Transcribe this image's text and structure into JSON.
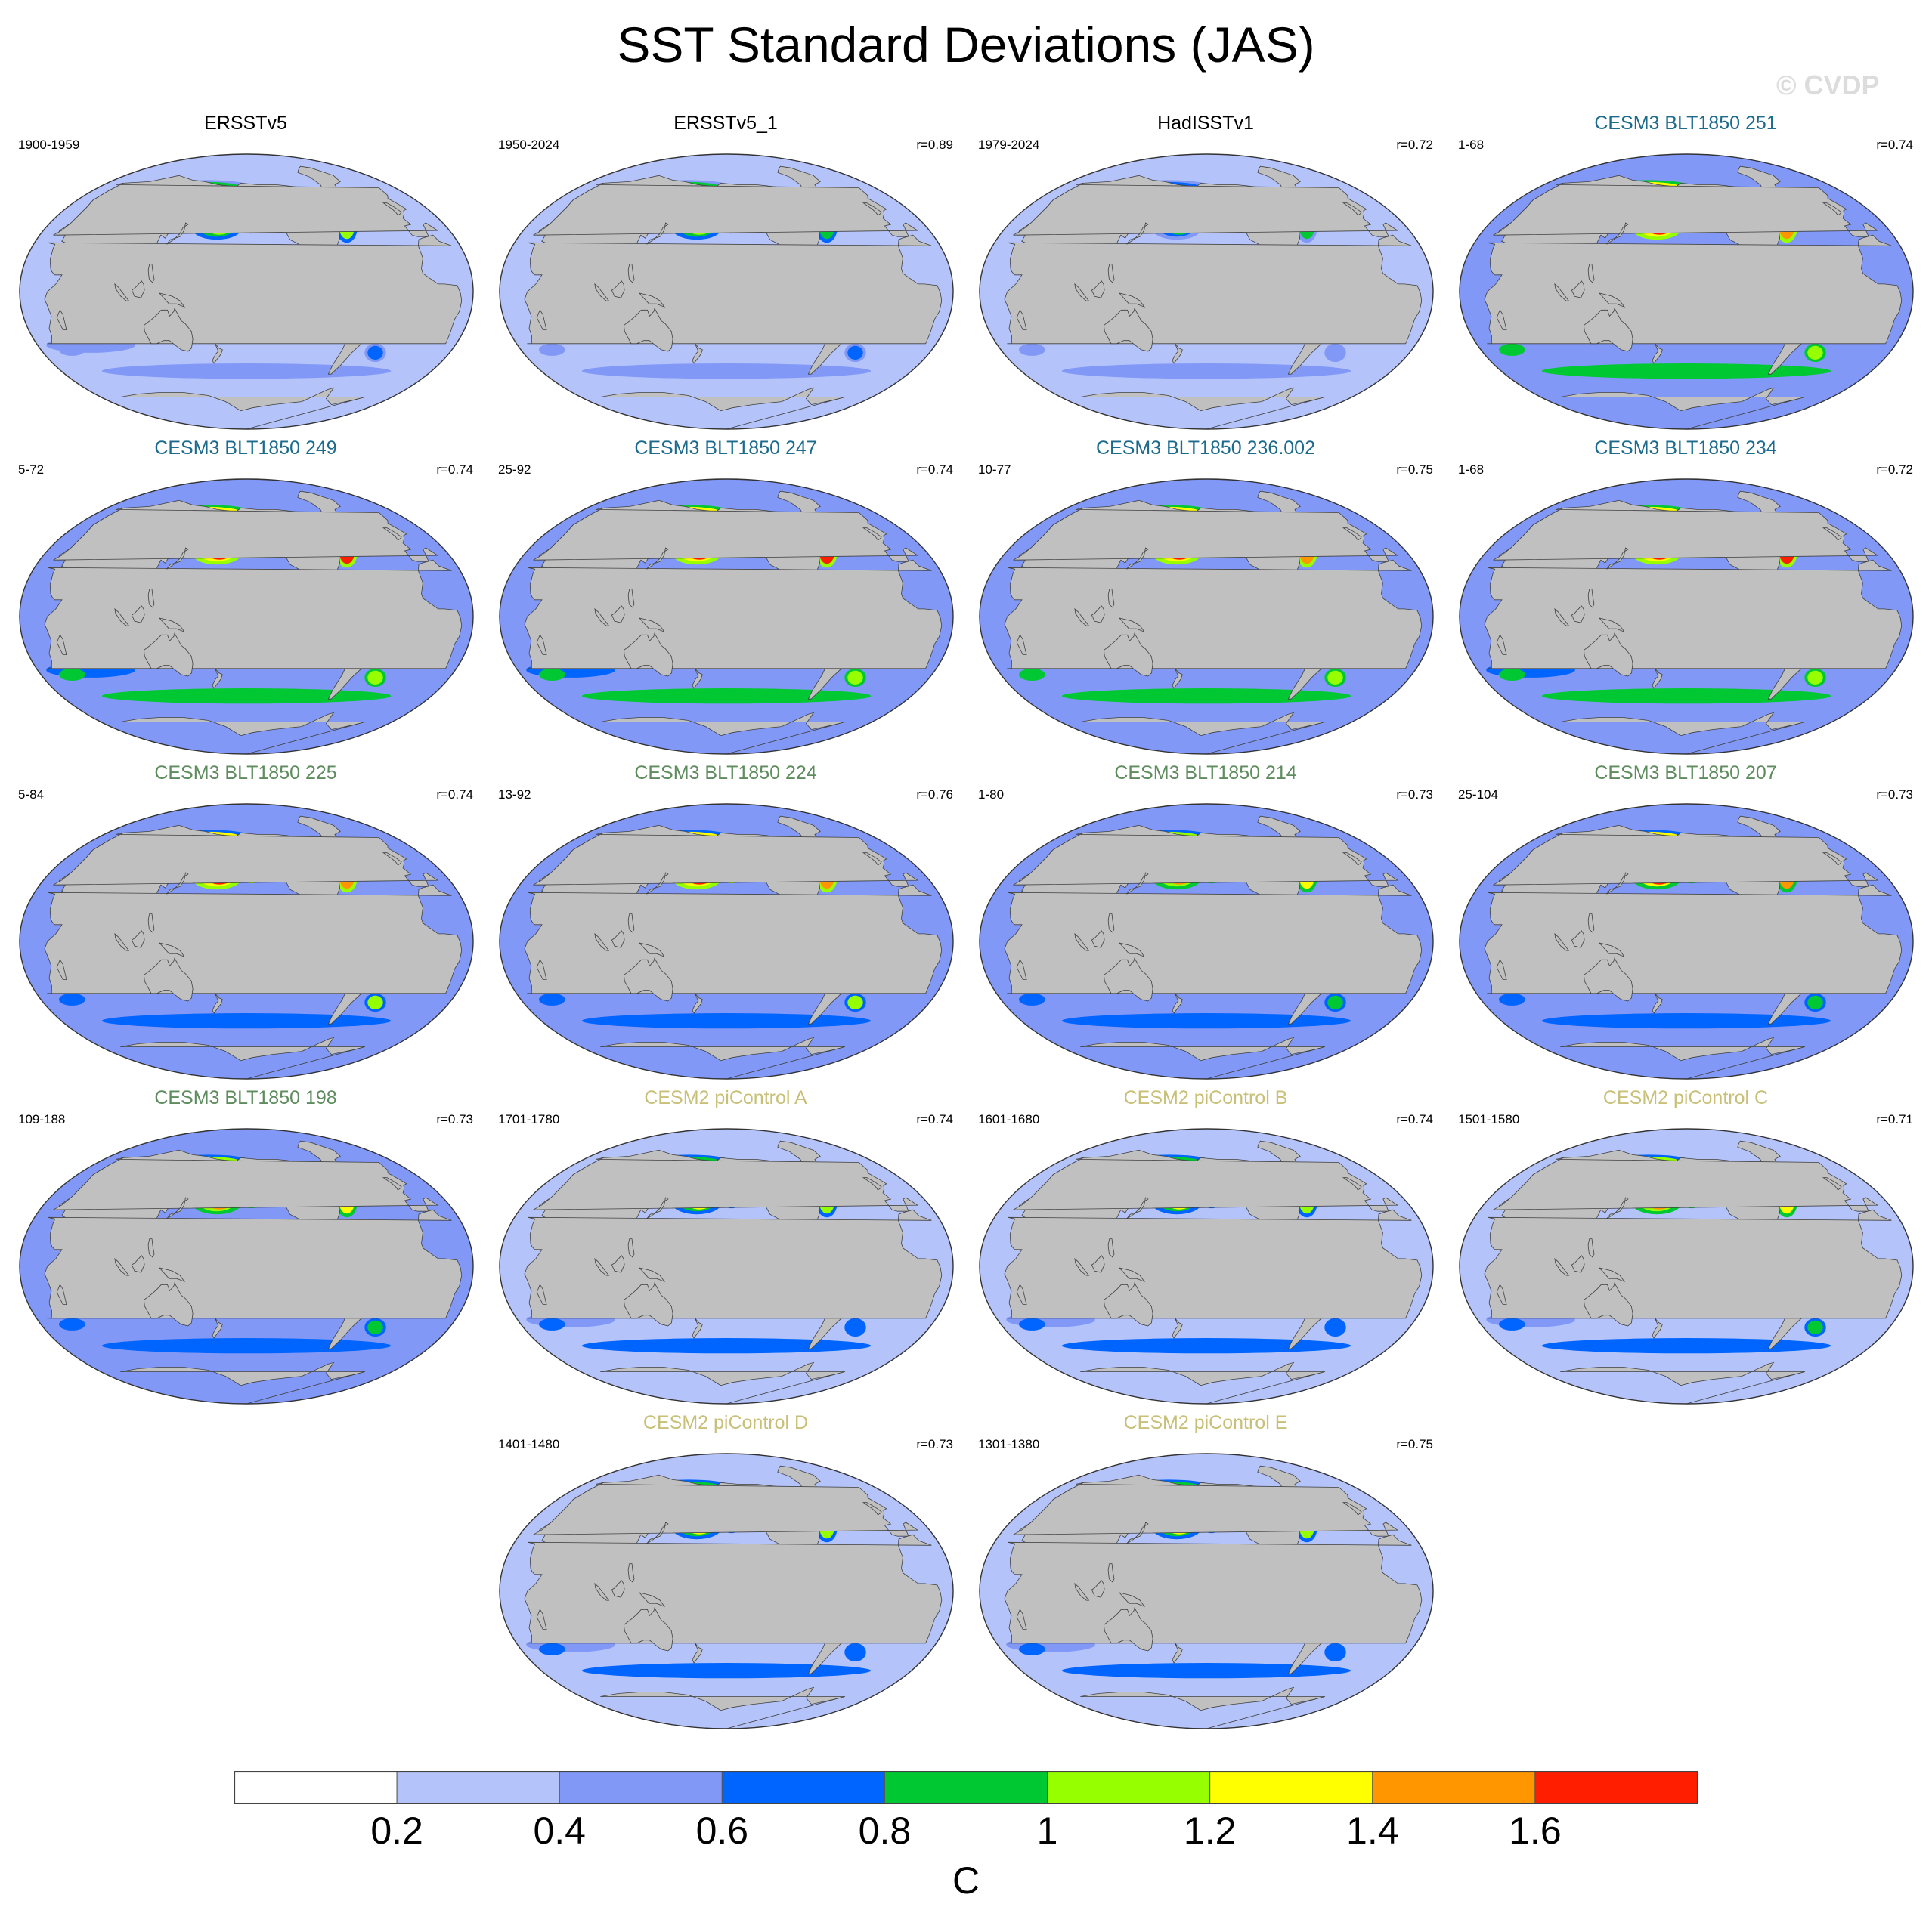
{
  "title": "SST Standard Deviations (JAS)",
  "watermark": "© CVDP",
  "units": "C",
  "colorbar": {
    "levels": [
      0.2,
      0.4,
      0.6,
      0.8,
      1,
      1.2,
      1.4,
      1.6
    ],
    "tick_labels": [
      "0.2",
      "0.4",
      "0.6",
      "0.8",
      "1",
      "1.2",
      "1.4",
      "1.6"
    ],
    "colors": [
      "#ffffff",
      "#b4c3f9",
      "#8198f7",
      "#0064ff",
      "#00c832",
      "#96ff00",
      "#ffff00",
      "#ff9600",
      "#ff1e00"
    ]
  },
  "colors": {
    "land": "#c0c0c0",
    "observation_title": "#000000",
    "cesm3_blue": "#1c6b8c",
    "cesm3_green": "#5e8c5e",
    "cesm2": "#c8c078"
  },
  "panels": [
    {
      "name": "ERSSTv5",
      "period": "1900-1959",
      "r": "",
      "group": "obs",
      "strength": 0.75
    },
    {
      "name": "ERSSTv5_1",
      "period": "1950-2024",
      "r": "r=0.89",
      "group": "obs",
      "strength": 0.7
    },
    {
      "name": "HadISSTv1",
      "period": "1979-2024",
      "r": "r=0.72",
      "group": "obs",
      "strength": 0.6
    },
    {
      "name": "CESM3 BLT1850 251",
      "period": "1-68",
      "r": "r=0.74",
      "group": "cesm3_blue",
      "strength": 1.2
    },
    {
      "name": "CESM3 BLT1850 249",
      "period": "5-72",
      "r": "r=0.74",
      "group": "cesm3_blue",
      "strength": 1.25
    },
    {
      "name": "CESM3 BLT1850 247",
      "period": "25-92",
      "r": "r=0.74",
      "group": "cesm3_blue",
      "strength": 1.25
    },
    {
      "name": "CESM3 BLT1850 236.002",
      "period": "10-77",
      "r": "r=0.75",
      "group": "cesm3_blue",
      "strength": 1.2
    },
    {
      "name": "CESM3 BLT1850 234",
      "period": "1-68",
      "r": "r=0.72",
      "group": "cesm3_blue",
      "strength": 1.25
    },
    {
      "name": "CESM3 BLT1850 225",
      "period": "5-84",
      "r": "r=0.74",
      "group": "cesm3_green",
      "strength": 1.15
    },
    {
      "name": "CESM3 BLT1850 224",
      "period": "13-92",
      "r": "r=0.76",
      "group": "cesm3_green",
      "strength": 1.15
    },
    {
      "name": "CESM3 BLT1850 214",
      "period": "1-80",
      "r": "r=0.73",
      "group": "cesm3_green",
      "strength": 1.05
    },
    {
      "name": "CESM3 BLT1850 207",
      "period": "25-104",
      "r": "r=0.73",
      "group": "cesm3_green",
      "strength": 1.1
    },
    {
      "name": "CESM3 BLT1850 198",
      "period": "109-188",
      "r": "r=0.73",
      "group": "cesm3_green",
      "strength": 1.05
    },
    {
      "name": "CESM2 piControl A",
      "period": "1701-1780",
      "r": "r=0.74",
      "group": "cesm2",
      "strength": 0.85
    },
    {
      "name": "CESM2 piControl B",
      "period": "1601-1680",
      "r": "r=0.74",
      "group": "cesm2",
      "strength": 0.85
    },
    {
      "name": "CESM2 piControl C",
      "period": "1501-1580",
      "r": "r=0.71",
      "group": "cesm2",
      "strength": 0.95
    },
    {
      "name": "CESM2 piControl D",
      "period": "1401-1480",
      "r": "r=0.73",
      "group": "cesm2",
      "strength": 0.85
    },
    {
      "name": "CESM2 piControl E",
      "period": "1301-1380",
      "r": "r=0.75",
      "group": "cesm2",
      "strength": 0.85
    }
  ]
}
